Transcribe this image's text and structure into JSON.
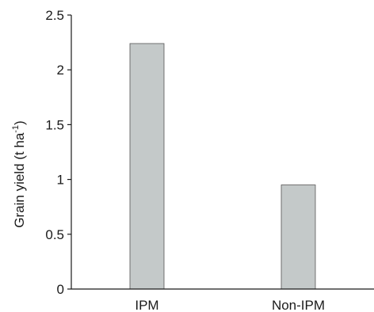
{
  "chart_data": {
    "type": "bar",
    "title": "",
    "xlabel": "",
    "ylabel": "Grain yield (t ha",
    "ylabel_superscript": "-1",
    "ylabel_suffix": ")",
    "categories": [
      "IPM",
      "Non-IPM"
    ],
    "values": [
      2.24,
      0.95
    ],
    "ylim": [
      0,
      2.5
    ],
    "yticks": [
      "0",
      "0.5",
      "1",
      "1.5",
      "2",
      "2.5"
    ],
    "grid": false,
    "legend": "none",
    "colors": {
      "bar_fill": "#c4c9c9",
      "bar_stroke": "#555555",
      "axis": "#1a1a1a"
    }
  }
}
